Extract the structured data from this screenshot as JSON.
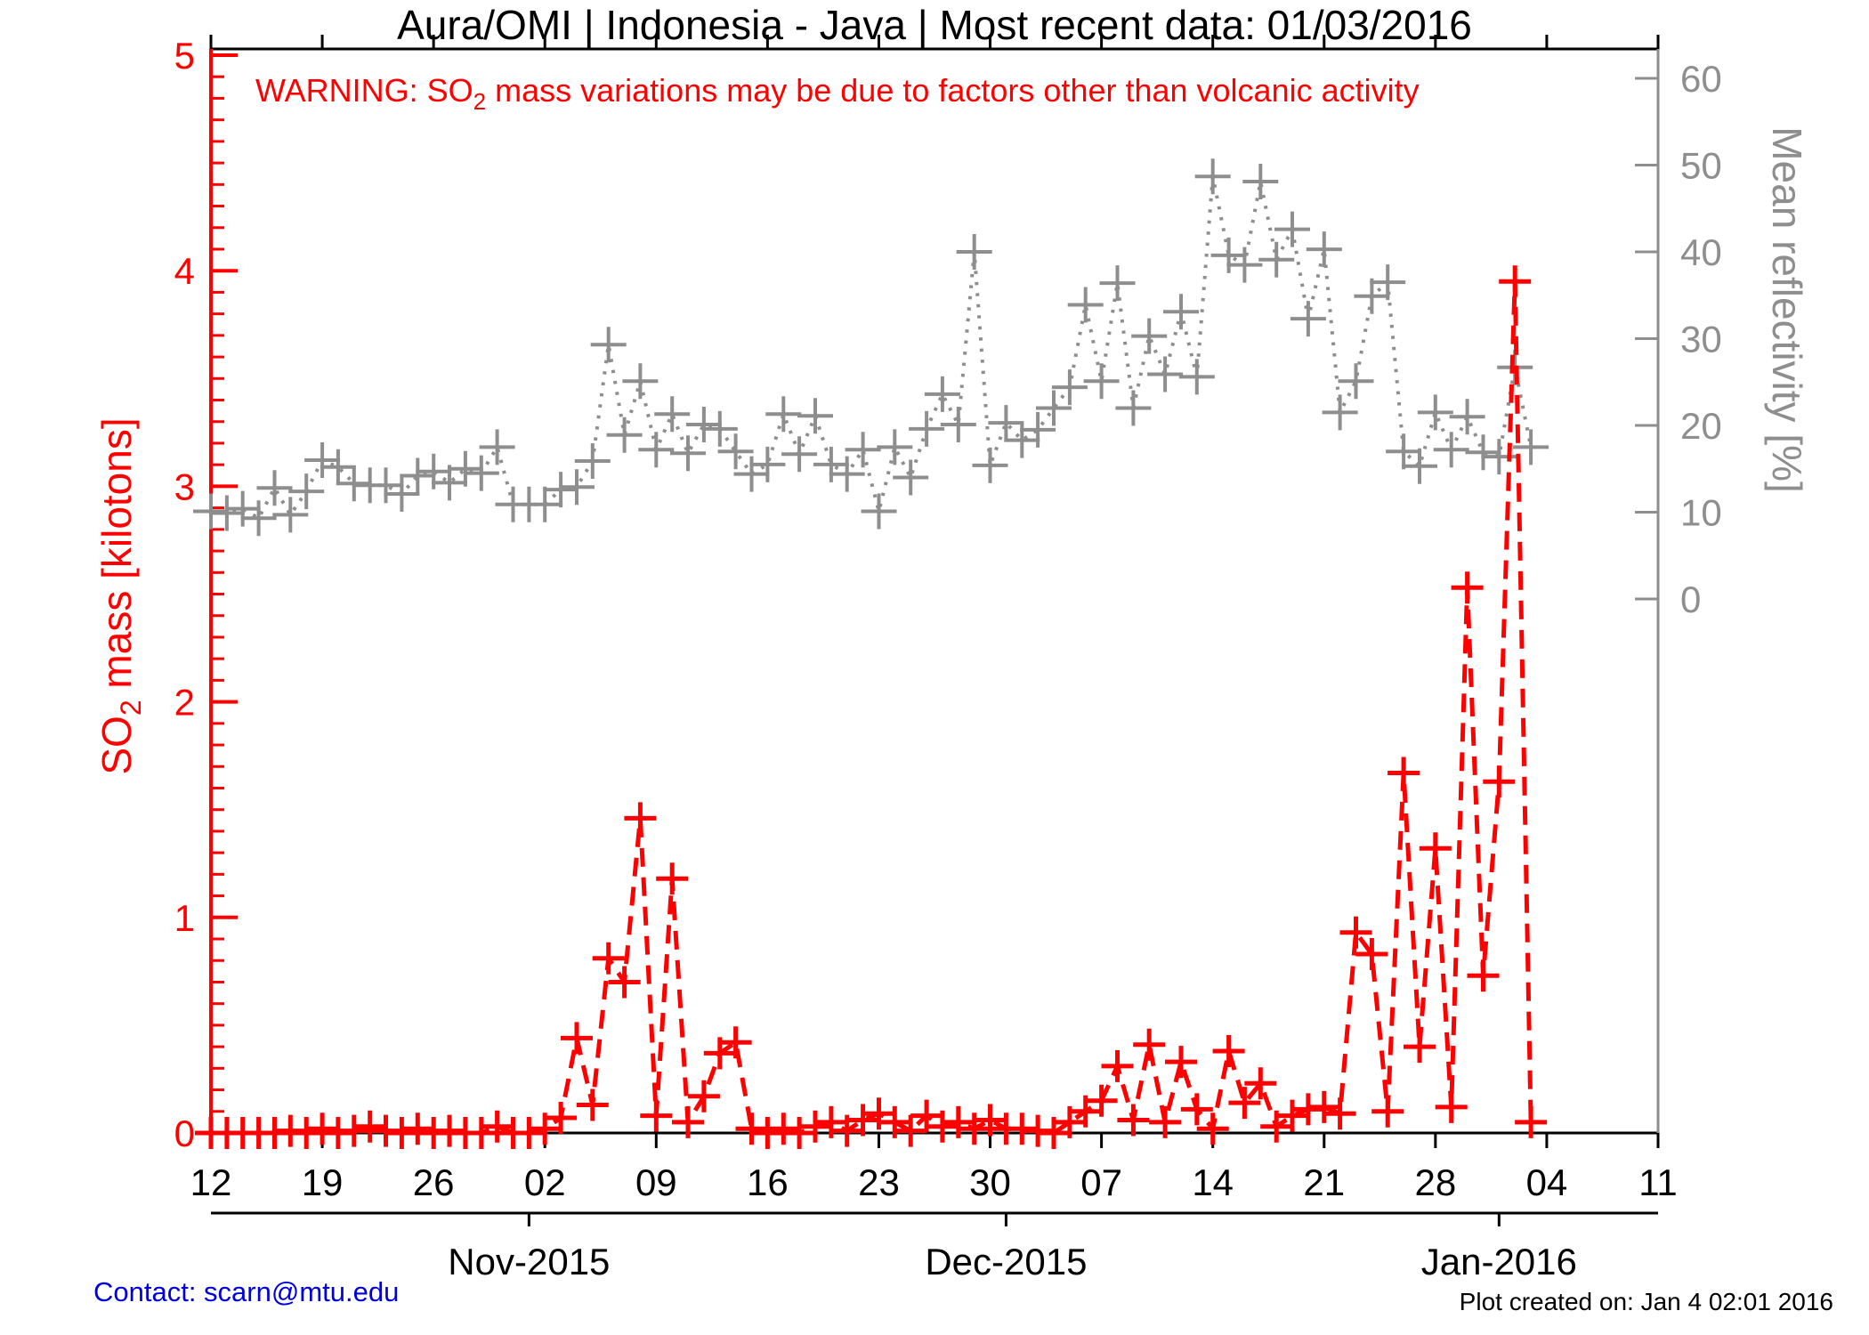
{
  "title": "Aura/OMI | Indonesia - Java | Most recent data: 01/03/2016",
  "warning": {
    "part1": "WARNING: SO",
    "sub": "2",
    "part2": " mass variations may be due to factors other than volcanic activity"
  },
  "footer": {
    "contact": "Contact: scarn@mtu.edu",
    "created": "Plot created on: Jan  4 02:01 2016"
  },
  "chart_data": {
    "type": "line",
    "title": "Aura/OMI | Indonesia - Java | Most recent data: 01/03/2016",
    "grid": false,
    "legend": "none",
    "x_axis": {
      "total_days": 91,
      "start_date": "10/12/2015",
      "week_ticks": [
        {
          "day": 0,
          "label": "12"
        },
        {
          "day": 7,
          "label": "19"
        },
        {
          "day": 14,
          "label": "26"
        },
        {
          "day": 21,
          "label": "02"
        },
        {
          "day": 28,
          "label": "09"
        },
        {
          "day": 35,
          "label": "16"
        },
        {
          "day": 42,
          "label": "23"
        },
        {
          "day": 49,
          "label": "30"
        },
        {
          "day": 56,
          "label": "07"
        },
        {
          "day": 63,
          "label": "14"
        },
        {
          "day": 70,
          "label": "21"
        },
        {
          "day": 77,
          "label": "28"
        },
        {
          "day": 84,
          "label": "04"
        },
        {
          "day": 91,
          "label": "11"
        }
      ],
      "month_ticks": [
        {
          "day": 20,
          "label": "Nov-2015"
        },
        {
          "day": 50,
          "label": "Dec-2015"
        },
        {
          "day": 81,
          "label": "Jan-2016"
        }
      ]
    },
    "left_axis": {
      "label": "SO2 mass [kilotons]",
      "label_parts": {
        "part1": "SO",
        "sub": "2",
        "part2": " mass [kilotons]"
      },
      "range": [
        0,
        5
      ],
      "major_ticks": [
        0,
        1,
        2,
        3,
        4,
        5
      ],
      "minor_tick_step": 0.1,
      "color": "#ff0000"
    },
    "right_axis": {
      "label": "Mean reflectivity [%]",
      "range_ticks": [
        0,
        10,
        20,
        30,
        40,
        50,
        60
      ],
      "color": "#8e8e8e"
    },
    "x_dates": [
      "10/12",
      "10/13",
      "10/14",
      "10/15",
      "10/16",
      "10/17",
      "10/18",
      "10/19",
      "10/20",
      "10/21",
      "10/22",
      "10/23",
      "10/24",
      "10/25",
      "10/26",
      "10/27",
      "10/28",
      "10/29",
      "10/30",
      "10/31",
      "11/01",
      "11/02",
      "11/03",
      "11/04",
      "11/05",
      "11/06",
      "11/07",
      "11/08",
      "11/09",
      "11/10",
      "11/11",
      "11/12",
      "11/13",
      "11/14",
      "11/15",
      "11/16",
      "11/17",
      "11/18",
      "11/19",
      "11/20",
      "11/21",
      "11/22",
      "11/23",
      "11/24",
      "11/25",
      "11/26",
      "11/27",
      "11/28",
      "11/29",
      "11/30",
      "12/01",
      "12/02",
      "12/03",
      "12/04",
      "12/05",
      "12/06",
      "12/07",
      "12/08",
      "12/09",
      "12/10",
      "12/11",
      "12/12",
      "12/13",
      "12/14",
      "12/15",
      "12/16",
      "12/17",
      "12/18",
      "12/19",
      "12/20",
      "12/21",
      "12/22",
      "12/23",
      "12/24",
      "12/25",
      "12/26",
      "12/27",
      "12/28",
      "12/29",
      "12/30",
      "12/31",
      "01/01",
      "01/02",
      "01/03"
    ],
    "series": [
      {
        "name": "SO2 mass [kilotons]",
        "axis": "left",
        "color": "#ff0000",
        "line_style": "dashed",
        "marker": "plus",
        "values": [
          0,
          0,
          0,
          0,
          0,
          0.01,
          0,
          0.02,
          0,
          0.01,
          0.03,
          0.01,
          0,
          0.02,
          0,
          0.01,
          0,
          0,
          0.03,
          0,
          0,
          0.02,
          0.07,
          0.44,
          0.13,
          0.81,
          0.7,
          1.46,
          0.08,
          1.18,
          0.05,
          0.17,
          0.37,
          0.42,
          0.02,
          0,
          0.02,
          0,
          0.03,
          0.05,
          0.01,
          0.06,
          0.09,
          0.05,
          0.01,
          0.08,
          0.03,
          0.05,
          0.02,
          0.06,
          0.02,
          0.02,
          0.01,
          0,
          0.05,
          0.1,
          0.15,
          0.31,
          0.06,
          0.41,
          0.05,
          0.33,
          0.11,
          0.02,
          0.38,
          0.14,
          0.23,
          0.03,
          0.08,
          0.11,
          0.12,
          0.09,
          0.93,
          0.83,
          0.1,
          1.67,
          0.4,
          1.32,
          0.12,
          2.53,
          0.73,
          1.63,
          3.95,
          0.05
        ]
      },
      {
        "name": "Mean reflectivity [%]",
        "axis": "right",
        "color": "#8e8e8e",
        "line_style": "dotted",
        "marker": "plus",
        "values": [
          10.1,
          9.9,
          10.4,
          9.3,
          12.8,
          9.7,
          12.4,
          16.0,
          15.2,
          13.3,
          13.1,
          13.1,
          12.1,
          14.2,
          14.7,
          13.4,
          15.0,
          14.5,
          17.5,
          10.9,
          10.9,
          10.9,
          12.6,
          12.9,
          15.9,
          29.3,
          18.9,
          25.1,
          17.2,
          21.3,
          16.8,
          20.1,
          19.6,
          17.0,
          14.4,
          15.5,
          21.3,
          16.7,
          21.1,
          15.5,
          14.4,
          17.2,
          10.1,
          17.5,
          14.0,
          19.6,
          23.6,
          20.1,
          40.0,
          15.4,
          20.3,
          18.3,
          19.5,
          22.0,
          24.4,
          33.9,
          25.1,
          36.4,
          22.0,
          30.3,
          25.9,
          33.1,
          25.6,
          48.7,
          39.6,
          38.5,
          48.1,
          39.1,
          42.6,
          32.3,
          40.3,
          21.5,
          25.1,
          34.9,
          36.5,
          17.0,
          15.3,
          21.5,
          17.2,
          21.0,
          16.9,
          16.4,
          26.7,
          17.5
        ]
      }
    ]
  }
}
